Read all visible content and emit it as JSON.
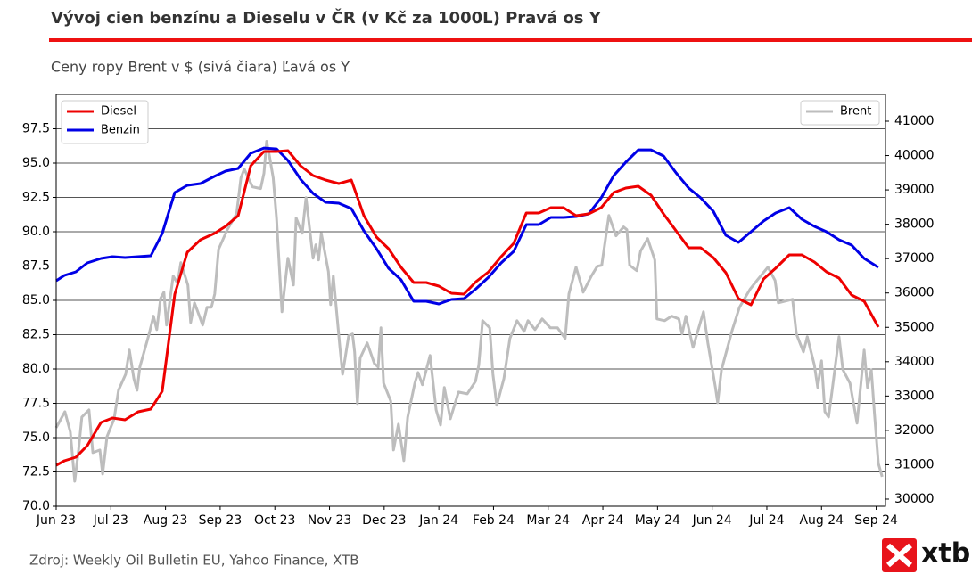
{
  "chart_data": {
    "type": "line",
    "title": "Vývoj cien benzínu a Dieselu v ČR (v Kč za 1000L) Pravá os Y",
    "subtitle": "Ceny ropy Brent v $ (sivá čiara) Ľavá os Y",
    "source": "Zdroj: Weekly Oil Bulletin EU, Yahoo Finance, XTB",
    "logo": "xtb",
    "xlim": [
      0,
      15.17
    ],
    "xticks": [
      {
        "value": 0,
        "label": "Jun 23"
      },
      {
        "value": 1,
        "label": "Jul 23"
      },
      {
        "value": 2,
        "label": "Aug 23"
      },
      {
        "value": 3,
        "label": "Sep 23"
      },
      {
        "value": 4,
        "label": "Oct 23"
      },
      {
        "value": 5,
        "label": "Nov 23"
      },
      {
        "value": 6,
        "label": "Dec 23"
      },
      {
        "value": 7,
        "label": "Jan 24"
      },
      {
        "value": 8,
        "label": "Feb 24"
      },
      {
        "value": 9,
        "label": "Mar 24"
      },
      {
        "value": 10,
        "label": "Apr 24"
      },
      {
        "value": 11,
        "label": "May 24"
      },
      {
        "value": 12,
        "label": "Jun 24"
      },
      {
        "value": 13,
        "label": "Jul 24"
      },
      {
        "value": 14,
        "label": "Aug 24"
      },
      {
        "value": 15,
        "label": "Sep 24"
      }
    ],
    "ylim": [
      70,
      100
    ],
    "yticks": [
      {
        "value": 70,
        "label": "70.0"
      },
      72.5,
      {
        "value": 75,
        "label": "75.0"
      },
      77.5,
      {
        "value": 80,
        "label": "80.0"
      },
      82.5,
      {
        "value": 85,
        "label": "85.0"
      },
      87.5,
      {
        "value": 90,
        "label": "90.0"
      },
      92.5,
      {
        "value": 95,
        "label": "95.0"
      },
      97.5
    ],
    "y2lim": [
      29792,
      41778
    ],
    "y2ticks": [
      30000,
      31000,
      32000,
      33000,
      34000,
      35000,
      36000,
      37000,
      38000,
      39000,
      40000,
      41000
    ],
    "grid": true,
    "legend": {
      "y2": "upper left",
      "y": "upper right"
    },
    "series": [
      {
        "name": "Diesel",
        "color": "#ee0000",
        "axis": "y2",
        "x": [
          0,
          0.15,
          0.36,
          0.57,
          0.82,
          1.03,
          1.26,
          1.5,
          1.73,
          1.94,
          2.17,
          2.4,
          2.64,
          2.89,
          3.1,
          3.33,
          3.56,
          3.8,
          4.03,
          4.24,
          4.47,
          4.7,
          4.93,
          5.17,
          5.4,
          5.63,
          5.86,
          6.08,
          6.31,
          6.54,
          6.77,
          7.0,
          7.23,
          7.46,
          7.68,
          7.91,
          8.14,
          8.37,
          8.6,
          8.83,
          9.05,
          9.28,
          9.51,
          9.74,
          9.97,
          10.2,
          10.42,
          10.65,
          10.88,
          11.11,
          11.34,
          11.57,
          11.79,
          12.02,
          12.25,
          12.48,
          12.71,
          12.94,
          13.16,
          13.41,
          13.64,
          13.87,
          14.09,
          14.32,
          14.55,
          14.78,
          15.04
        ],
        "values": [
          30986,
          31115,
          31219,
          31556,
          32231,
          32361,
          32309,
          32542,
          32620,
          33139,
          35966,
          37185,
          37549,
          37730,
          37938,
          38249,
          39702,
          40117,
          40117,
          40143,
          39702,
          39416,
          39287,
          39183,
          39287,
          38249,
          37627,
          37289,
          36744,
          36303,
          36303,
          36200,
          35992,
          35966,
          36329,
          36615,
          37056,
          37445,
          38327,
          38327,
          38482,
          38482,
          38249,
          38301,
          38482,
          38923,
          39053,
          39105,
          38846,
          38301,
          37808,
          37315,
          37315,
          37030,
          36589,
          35837,
          35655,
          36407,
          36718,
          37108,
          37108,
          36900,
          36615,
          36433,
          35940,
          35759,
          35006
        ]
      },
      {
        "name": "Benzin",
        "color": "#0000e6",
        "axis": "y2",
        "x": [
          0,
          0.15,
          0.36,
          0.57,
          0.82,
          1.03,
          1.26,
          1.5,
          1.73,
          1.94,
          2.17,
          2.4,
          2.64,
          2.89,
          3.1,
          3.33,
          3.56,
          3.8,
          4.03,
          4.24,
          4.47,
          4.7,
          4.93,
          5.17,
          5.4,
          5.63,
          5.86,
          6.08,
          6.31,
          6.54,
          6.77,
          7.0,
          7.23,
          7.46,
          7.68,
          7.91,
          8.14,
          8.37,
          8.6,
          8.83,
          9.05,
          9.28,
          9.51,
          9.74,
          9.97,
          10.2,
          10.42,
          10.65,
          10.88,
          11.11,
          11.34,
          11.57,
          11.79,
          12.02,
          12.25,
          12.48,
          12.71,
          12.94,
          13.16,
          13.41,
          13.64,
          13.87,
          14.09,
          14.32,
          14.55,
          14.78,
          15.04
        ],
        "values": [
          36355,
          36511,
          36615,
          36874,
          37004,
          37056,
          37030,
          37056,
          37082,
          37730,
          38923,
          39131,
          39183,
          39390,
          39546,
          39624,
          40065,
          40220,
          40194,
          39857,
          39312,
          38897,
          38638,
          38612,
          38456,
          37808,
          37289,
          36718,
          36381,
          35759,
          35759,
          35681,
          35811,
          35837,
          36122,
          36459,
          36874,
          37211,
          37990,
          37990,
          38197,
          38197,
          38223,
          38301,
          38768,
          39416,
          39805,
          40168,
          40168,
          39987,
          39494,
          39053,
          38768,
          38379,
          37678,
          37471,
          37782,
          38093,
          38327,
          38482,
          38145,
          37938,
          37782,
          37549,
          37393,
          37004,
          36744
        ]
      },
      {
        "name": "Brent",
        "color": "#bdbdbd",
        "axis": "y",
        "x": [
          0,
          0.16,
          0.26,
          0.34,
          0.41,
          0.47,
          0.6,
          0.67,
          0.8,
          0.85,
          0.93,
          1.06,
          1.14,
          1.27,
          1.34,
          1.42,
          1.48,
          1.53,
          1.7,
          1.78,
          1.84,
          1.91,
          1.97,
          2.02,
          2.14,
          2.22,
          2.28,
          2.41,
          2.46,
          2.53,
          2.68,
          2.76,
          2.84,
          2.9,
          2.97,
          3.13,
          3.3,
          3.38,
          3.44,
          3.59,
          3.74,
          3.8,
          3.85,
          3.9,
          3.97,
          4.03,
          4.13,
          4.24,
          4.34,
          4.39,
          4.5,
          4.57,
          4.7,
          4.75,
          4.8,
          4.85,
          4.98,
          5.02,
          5.07,
          5.19,
          5.24,
          5.35,
          5.42,
          5.46,
          5.51,
          5.56,
          5.69,
          5.82,
          5.89,
          5.94,
          5.99,
          6.12,
          6.17,
          6.26,
          6.36,
          6.43,
          6.56,
          6.62,
          6.7,
          6.84,
          6.95,
          7.03,
          7.1,
          7.21,
          7.36,
          7.52,
          7.67,
          7.73,
          7.8,
          7.93,
          7.99,
          8.06,
          8.19,
          8.3,
          8.43,
          8.56,
          8.63,
          8.76,
          8.89,
          9.04,
          9.17,
          9.31,
          9.38,
          9.51,
          9.64,
          9.79,
          9.9,
          9.98,
          10.11,
          10.24,
          10.38,
          10.44,
          10.49,
          10.62,
          10.69,
          10.82,
          10.95,
          10.99,
          11.13,
          11.26,
          11.39,
          11.45,
          11.52,
          11.65,
          11.84,
          11.92,
          12.06,
          12.1,
          12.17,
          12.37,
          12.5,
          12.69,
          12.82,
          13.02,
          13.15,
          13.21,
          13.34,
          13.47,
          13.54,
          13.67,
          13.74,
          13.87,
          13.93,
          14.0,
          14.06,
          14.13,
          14.19,
          14.32,
          14.39,
          14.52,
          14.65,
          14.78,
          14.84,
          14.91,
          14.97,
          15.04,
          15.11
        ],
        "values": [
          75.72,
          76.89,
          75.4,
          71.82,
          74.1,
          76.5,
          77.02,
          73.9,
          74.1,
          72.34,
          75.07,
          76.37,
          78.45,
          79.62,
          81.38,
          79.3,
          78.45,
          80.14,
          82.55,
          83.85,
          82.87,
          85.15,
          85.6,
          83.2,
          86.77,
          86.25,
          87.75,
          86.12,
          83.39,
          84.82,
          83.2,
          84.5,
          84.5,
          85.47,
          88.72,
          90.15,
          91.32,
          93.92,
          94.57,
          93.27,
          93.14,
          94.25,
          96.59,
          95.55,
          93.92,
          91.0,
          84.17,
          88.07,
          86.12,
          91.0,
          89.89,
          92.49,
          88.07,
          89.05,
          87.94,
          89.89,
          87.1,
          84.69,
          86.77,
          81.57,
          79.62,
          82.42,
          82.55,
          81.25,
          77.48,
          80.79,
          81.9,
          80.4,
          80.14,
          83.0,
          78.97,
          77.67,
          74.1,
          75.98,
          73.32,
          76.5,
          78.97,
          79.75,
          78.85,
          80.99,
          77.02,
          75.92,
          78.65,
          76.37,
          78.32,
          78.19,
          79.1,
          80.27,
          83.52,
          83.0,
          79.62,
          77.35,
          79.3,
          82.22,
          83.52,
          82.74,
          83.52,
          82.87,
          83.65,
          83.0,
          83.0,
          82.22,
          85.47,
          87.42,
          85.6,
          86.77,
          87.49,
          87.55,
          91.19,
          89.7,
          90.35,
          90.15,
          87.55,
          87.16,
          88.59,
          89.5,
          87.94,
          83.65,
          83.52,
          83.85,
          83.65,
          82.55,
          83.85,
          81.57,
          84.17,
          81.9,
          78.65,
          77.54,
          79.95,
          82.87,
          84.5,
          85.8,
          86.45,
          87.42,
          86.45,
          84.82,
          84.95,
          85.08,
          82.55,
          81.25,
          82.35,
          80.27,
          78.65,
          80.6,
          76.89,
          76.5,
          78.32,
          82.35,
          79.95,
          78.97,
          76.05,
          81.38,
          78.65,
          79.95,
          76.7,
          73.12,
          72.15
        ]
      }
    ]
  }
}
